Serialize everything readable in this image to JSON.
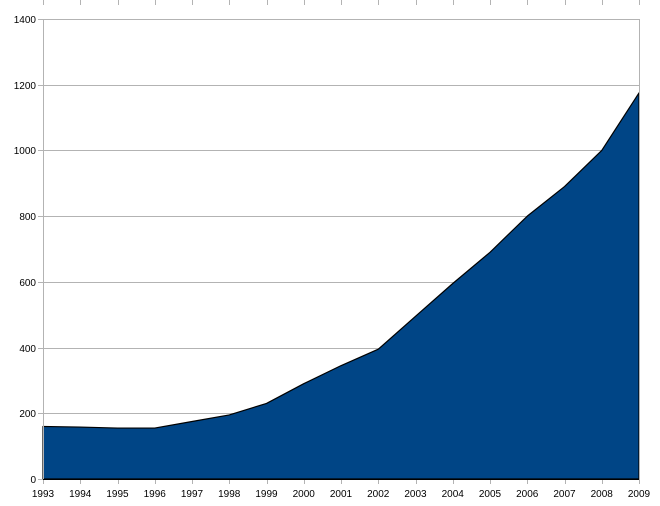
{
  "chart_data": {
    "type": "area",
    "title": "",
    "xlabel": "",
    "ylabel": "",
    "x": [
      "1993",
      "1994",
      "1995",
      "1996",
      "1997",
      "1998",
      "1999",
      "2000",
      "2001",
      "2002",
      "2003",
      "2004",
      "2005",
      "2006",
      "2007",
      "2008",
      "2009"
    ],
    "series": [
      {
        "values": [
          160,
          158,
          155,
          155,
          175,
          195,
          230,
          290,
          345,
          395,
          495,
          595,
          690,
          800,
          890,
          1000,
          1175
        ]
      }
    ],
    "ylim": [
      0,
      1400
    ],
    "yticks": [
      0,
      200,
      400,
      600,
      800,
      1000,
      1200,
      1400
    ],
    "grid": "horizontal",
    "legend": "none",
    "colors": {
      "fill": "#004586",
      "outline": "#000000",
      "grid": "#b3b3b3"
    }
  }
}
